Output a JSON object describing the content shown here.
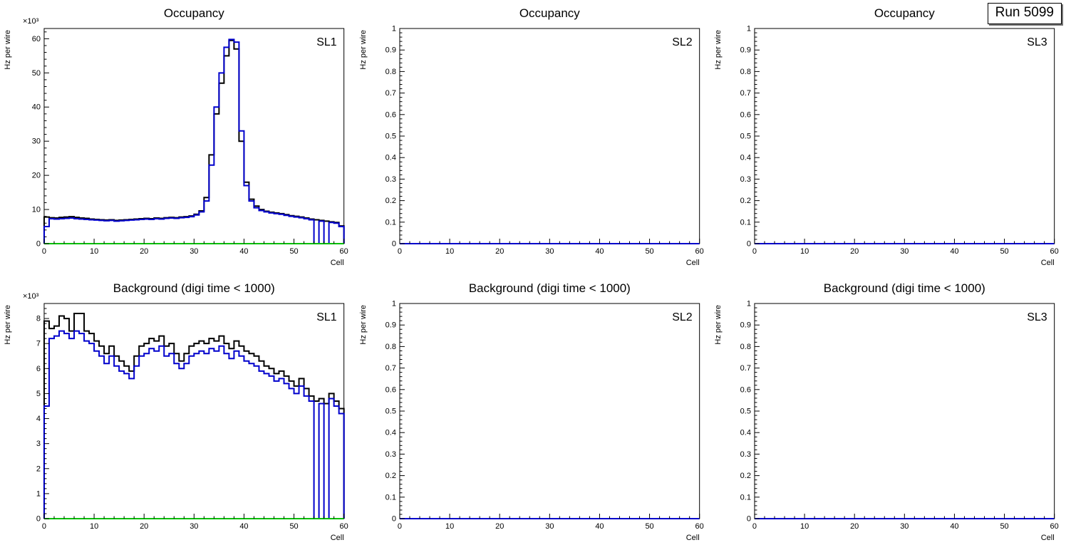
{
  "page": {
    "run_label": "Run 5099",
    "background": "#ffffff"
  },
  "colors": {
    "black": "#000000",
    "blue": "#0000cc",
    "green": "#00c000",
    "frame": "#000000"
  },
  "chart_data": [
    {
      "type": "bar",
      "title": "Occupancy",
      "panel_label": "SL1",
      "xlabel": "Cell",
      "ylabel": "Hz per wire",
      "y_multiplier": "×10³",
      "xlim": [
        0,
        60
      ],
      "ylim": [
        0,
        63
      ],
      "xticks": [
        0,
        10,
        20,
        30,
        40,
        50,
        60
      ],
      "yticks": [
        0,
        10,
        20,
        30,
        40,
        50,
        60
      ],
      "x_minor_step": 2,
      "y_minor_step": 2,
      "series": [
        {
          "name": "occupancy-black",
          "color": "#000000",
          "width": 2,
          "values": [
            7.8,
            7.6,
            7.5,
            7.7,
            7.8,
            7.9,
            7.7,
            7.5,
            7.4,
            7.2,
            7.1,
            7.0,
            6.9,
            7.0,
            6.8,
            6.9,
            7.0,
            7.1,
            7.2,
            7.3,
            7.4,
            7.3,
            7.5,
            7.4,
            7.6,
            7.7,
            7.6,
            7.8,
            7.9,
            8.1,
            8.6,
            9.6,
            13.5,
            26.0,
            38.0,
            47.0,
            55.0,
            59.5,
            57.0,
            30.0,
            18.0,
            13.0,
            11.0,
            10.0,
            9.5,
            9.2,
            9.0,
            8.8,
            8.5,
            8.2,
            8.0,
            7.8,
            7.5,
            7.2,
            7.0,
            6.8,
            6.6,
            6.4,
            6.2,
            5.2
          ]
        },
        {
          "name": "occupancy-blue",
          "color": "#0000cc",
          "width": 2,
          "values": [
            5.0,
            7.3,
            7.2,
            7.3,
            7.4,
            7.5,
            7.3,
            7.2,
            7.1,
            7.0,
            6.9,
            6.8,
            6.7,
            6.8,
            6.6,
            6.7,
            6.8,
            6.9,
            7.0,
            7.1,
            7.2,
            7.1,
            7.3,
            7.2,
            7.4,
            7.5,
            7.4,
            7.6,
            7.7,
            7.9,
            8.4,
            9.3,
            12.5,
            23.0,
            40.0,
            50.0,
            57.5,
            59.8,
            59.0,
            33.0,
            17.0,
            12.5,
            10.5,
            9.7,
            9.3,
            9.0,
            8.8,
            8.6,
            8.3,
            8.0,
            7.8,
            7.6,
            7.3,
            7.0,
            0.0,
            6.6,
            0.0,
            6.2,
            6.0,
            5.0
          ]
        },
        {
          "name": "baseline-green",
          "color": "#00c000",
          "width": 2,
          "flat": 0
        }
      ]
    },
    {
      "type": "bar",
      "title": "Occupancy",
      "panel_label": "SL2",
      "xlabel": "Cell",
      "ylabel": "Hz per wire",
      "xlim": [
        0,
        60
      ],
      "ylim": [
        0,
        1
      ],
      "xticks": [
        0,
        10,
        20,
        30,
        40,
        50,
        60
      ],
      "yticks": [
        0,
        0.1,
        0.2,
        0.3,
        0.4,
        0.5,
        0.6,
        0.7,
        0.8,
        0.9,
        1
      ],
      "x_minor_step": 2,
      "y_minor_step": 0.02,
      "series": [
        {
          "name": "empty-blue",
          "color": "#0000cc",
          "width": 2,
          "flat": 0
        }
      ]
    },
    {
      "type": "bar",
      "title": "Occupancy",
      "panel_label": "SL3",
      "xlabel": "Cell",
      "ylabel": "Hz per wire",
      "xlim": [
        0,
        60
      ],
      "ylim": [
        0,
        1
      ],
      "xticks": [
        0,
        10,
        20,
        30,
        40,
        50,
        60
      ],
      "yticks": [
        0,
        0.1,
        0.2,
        0.3,
        0.4,
        0.5,
        0.6,
        0.7,
        0.8,
        0.9,
        1
      ],
      "x_minor_step": 2,
      "y_minor_step": 0.02,
      "series": [
        {
          "name": "empty-blue",
          "color": "#0000cc",
          "width": 2,
          "flat": 0
        }
      ]
    },
    {
      "type": "bar",
      "title": "Background (digi time < 1000)",
      "panel_label": "SL1",
      "xlabel": "Cell",
      "ylabel": "Hz per wire",
      "y_multiplier": "×10³",
      "xlim": [
        0,
        60
      ],
      "ylim": [
        0,
        8.6
      ],
      "xticks": [
        0,
        10,
        20,
        30,
        40,
        50,
        60
      ],
      "yticks": [
        0,
        1,
        2,
        3,
        4,
        5,
        6,
        7,
        8
      ],
      "x_minor_step": 2,
      "y_minor_step": 0.2,
      "series": [
        {
          "name": "background-black",
          "color": "#000000",
          "width": 2,
          "values": [
            7.9,
            7.6,
            7.7,
            8.1,
            8.0,
            7.5,
            8.2,
            8.2,
            7.5,
            7.4,
            7.1,
            6.9,
            6.6,
            6.9,
            6.5,
            6.3,
            6.1,
            5.9,
            6.5,
            6.9,
            7.0,
            7.2,
            7.1,
            7.3,
            6.9,
            7.0,
            6.6,
            6.3,
            6.6,
            6.9,
            7.0,
            7.1,
            7.0,
            7.2,
            7.1,
            7.3,
            7.0,
            6.8,
            7.1,
            6.9,
            6.7,
            6.6,
            6.5,
            6.3,
            6.1,
            6.0,
            5.8,
            5.9,
            5.7,
            5.5,
            5.3,
            5.6,
            5.2,
            4.9,
            4.7,
            4.8,
            4.6,
            5.0,
            4.7,
            4.4
          ]
        },
        {
          "name": "background-blue",
          "color": "#0000cc",
          "width": 2,
          "values": [
            4.5,
            7.2,
            7.3,
            7.5,
            7.4,
            7.2,
            7.5,
            7.4,
            7.1,
            7.0,
            6.7,
            6.5,
            6.2,
            6.5,
            6.1,
            5.9,
            5.8,
            5.6,
            6.1,
            6.5,
            6.6,
            6.8,
            6.7,
            6.9,
            6.5,
            6.6,
            6.2,
            6.0,
            6.2,
            6.5,
            6.6,
            6.7,
            6.6,
            6.8,
            6.7,
            6.9,
            6.6,
            6.4,
            6.7,
            6.5,
            6.3,
            6.2,
            6.1,
            5.9,
            5.8,
            5.7,
            5.5,
            5.6,
            5.4,
            5.2,
            5.0,
            5.3,
            4.9,
            4.7,
            0.0,
            4.6,
            0.0,
            4.8,
            4.5,
            4.2
          ]
        },
        {
          "name": "baseline-green",
          "color": "#00c000",
          "width": 2,
          "flat": 0
        }
      ]
    },
    {
      "type": "bar",
      "title": "Background (digi time < 1000)",
      "panel_label": "SL2",
      "xlabel": "Cell",
      "ylabel": "Hz per wire",
      "xlim": [
        0,
        60
      ],
      "ylim": [
        0,
        1
      ],
      "xticks": [
        0,
        10,
        20,
        30,
        40,
        50,
        60
      ],
      "yticks": [
        0,
        0.1,
        0.2,
        0.3,
        0.4,
        0.5,
        0.6,
        0.7,
        0.8,
        0.9,
        1
      ],
      "x_minor_step": 2,
      "y_minor_step": 0.02,
      "series": [
        {
          "name": "empty-blue",
          "color": "#0000cc",
          "width": 2,
          "flat": 0
        }
      ]
    },
    {
      "type": "bar",
      "title": "Background (digi time < 1000)",
      "panel_label": "SL3",
      "xlabel": "Cell",
      "ylabel": "Hz per wire",
      "xlim": [
        0,
        60
      ],
      "ylim": [
        0,
        1
      ],
      "xticks": [
        0,
        10,
        20,
        30,
        40,
        50,
        60
      ],
      "yticks": [
        0,
        0.1,
        0.2,
        0.3,
        0.4,
        0.5,
        0.6,
        0.7,
        0.8,
        0.9,
        1
      ],
      "x_minor_step": 2,
      "y_minor_step": 0.02,
      "series": [
        {
          "name": "empty-blue",
          "color": "#0000cc",
          "width": 2,
          "flat": 0
        }
      ]
    }
  ]
}
